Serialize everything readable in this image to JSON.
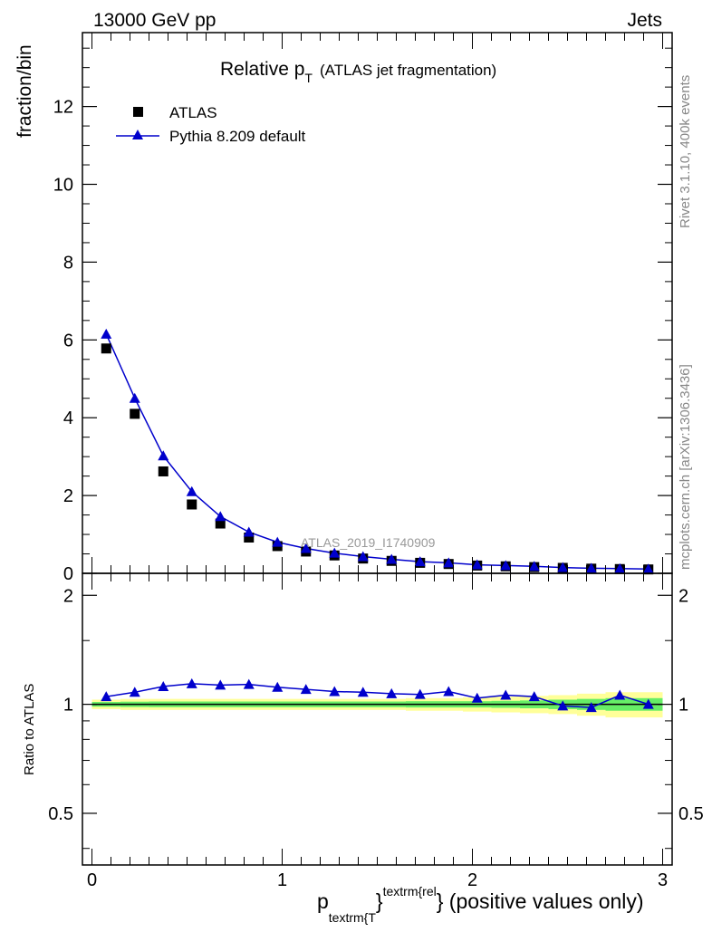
{
  "header": {
    "left": "13000 GeV pp",
    "right": "Jets"
  },
  "side_labels": {
    "rivet": "Rivet 3.1.10,  400k events",
    "mcplots": "mcplots.cern.ch [arXiv:1306.3436]"
  },
  "chart_data": [
    {
      "type": "scatter",
      "panel": "main",
      "title_main": "Relative p",
      "title_sub": "T",
      "title_suffix": "(ATLAS jet fragmentation)",
      "ylabel": "fraction/bin",
      "watermark": "ATLAS_2019_I1740909",
      "xlim": [
        -0.05,
        3.05
      ],
      "ylim": [
        0,
        13.9
      ],
      "yticks": [
        0,
        2,
        4,
        6,
        8,
        10,
        12
      ],
      "ytick_labels": [
        "0",
        "2",
        "4",
        "6",
        "8",
        "10",
        "12"
      ],
      "legend_position": "top-left",
      "x": [
        0.075,
        0.225,
        0.375,
        0.525,
        0.675,
        0.825,
        0.975,
        1.125,
        1.275,
        1.425,
        1.575,
        1.725,
        1.875,
        2.025,
        2.175,
        2.325,
        2.475,
        2.625,
        2.775,
        2.925
      ],
      "series": [
        {
          "name": "ATLAS",
          "marker": "square",
          "color": "#000000",
          "values": [
            5.78,
            4.1,
            2.62,
            1.77,
            1.28,
            0.92,
            0.7,
            0.56,
            0.46,
            0.38,
            0.32,
            0.27,
            0.24,
            0.2,
            0.18,
            0.16,
            0.14,
            0.12,
            0.11,
            0.1
          ]
        },
        {
          "name": "Pythia 8.209 default",
          "marker": "triangle",
          "color": "#0000cc",
          "values": [
            6.15,
            4.5,
            3.02,
            2.1,
            1.46,
            1.06,
            0.8,
            0.64,
            0.52,
            0.43,
            0.36,
            0.3,
            0.27,
            0.22,
            0.2,
            0.18,
            0.15,
            0.13,
            0.12,
            0.11
          ]
        }
      ]
    },
    {
      "type": "scatter",
      "panel": "ratio",
      "ylabel": "Ratio to ATLAS",
      "xlabel_main": "p",
      "xlabel_sub": "textrm{T",
      "xlabel_brace": "}",
      "xlabel_sup": "textrm{rel",
      "xlabel_suffix": "} (positive values only)",
      "xlim": [
        -0.05,
        3.05
      ],
      "ylim": [
        0.36,
        2.3
      ],
      "xticks": [
        0,
        1,
        2,
        3
      ],
      "xtick_labels": [
        "0",
        "1",
        "2",
        "3"
      ],
      "yticks": [
        0.5,
        1,
        2
      ],
      "ytick_labels": [
        "0.5",
        "1",
        "2"
      ],
      "x": [
        0.075,
        0.225,
        0.375,
        0.525,
        0.675,
        0.825,
        0.975,
        1.125,
        1.275,
        1.425,
        1.575,
        1.725,
        1.875,
        2.025,
        2.175,
        2.325,
        2.475,
        2.625,
        2.775,
        2.925
      ],
      "series": [
        {
          "name": "Pythia 8.209 default",
          "color": "#0000cc",
          "values": [
            1.05,
            1.08,
            1.12,
            1.14,
            1.13,
            1.135,
            1.115,
            1.1,
            1.085,
            1.08,
            1.07,
            1.065,
            1.085,
            1.04,
            1.06,
            1.05,
            0.99,
            0.98,
            1.06,
            1.0
          ]
        }
      ],
      "bands": {
        "x_edges": [
          0.0,
          0.15,
          0.3,
          0.45,
          0.6,
          0.75,
          0.9,
          1.05,
          1.2,
          1.35,
          1.5,
          1.65,
          1.8,
          1.95,
          2.1,
          2.25,
          2.4,
          2.55,
          2.7,
          2.85,
          3.0
        ],
        "yellow_half_width": [
          0.03,
          0.035,
          0.035,
          0.035,
          0.035,
          0.035,
          0.035,
          0.035,
          0.035,
          0.035,
          0.035,
          0.04,
          0.04,
          0.045,
          0.05,
          0.055,
          0.06,
          0.07,
          0.08,
          0.08
        ],
        "green_half_width": [
          0.015,
          0.017,
          0.018,
          0.018,
          0.018,
          0.018,
          0.018,
          0.018,
          0.018,
          0.018,
          0.018,
          0.02,
          0.02,
          0.02,
          0.022,
          0.025,
          0.03,
          0.035,
          0.04,
          0.04
        ],
        "yellow_color": "#ffff99",
        "green_color": "#66ee66"
      }
    }
  ]
}
